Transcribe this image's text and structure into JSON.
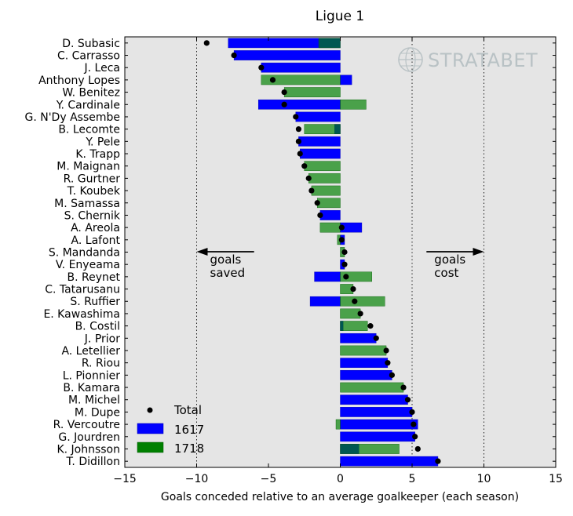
{
  "chart_data": {
    "type": "bar",
    "orientation": "horizontal",
    "title": "Ligue 1",
    "xlabel": "Goals conceded relative to an average goalkeeper (each season)",
    "ylabel": "",
    "xlim": [
      -15,
      15
    ],
    "xticks": [
      -15,
      -10,
      -5,
      0,
      5,
      10,
      15
    ],
    "xtick_labels": [
      "−15",
      "−10",
      "−5",
      "0",
      "5",
      "10",
      "15"
    ],
    "gridlines_x": [
      -10,
      5,
      10
    ],
    "background": "#e5e5e5",
    "legend": {
      "placement": "lower-left",
      "entries": [
        {
          "name": "Total",
          "kind": "marker",
          "color": "#000000"
        },
        {
          "name": "1617",
          "kind": "bar",
          "color": "#0000ff"
        },
        {
          "name": "1718",
          "kind": "bar",
          "color": "#008000"
        }
      ]
    },
    "annotations": {
      "left": {
        "line1": "goals",
        "line2": "saved",
        "arrow_from": -6,
        "arrow_to": -10
      },
      "right": {
        "line1": "goals",
        "line2": "cost",
        "arrow_from": 6,
        "arrow_to": 10
      }
    },
    "watermark": "STRATABET",
    "colors": {
      "s1617": "#0000ff",
      "s1718": "#008000",
      "total": "#000000"
    },
    "players": [
      {
        "name": "D. Subasic",
        "v1617": -7.8,
        "v1718": -1.5,
        "total": -9.3
      },
      {
        "name": "C. Carrasso",
        "v1617": -7.4,
        "v1718": null,
        "total": -7.4
      },
      {
        "name": "J. Leca",
        "v1617": -5.5,
        "v1718": null,
        "total": -5.5
      },
      {
        "name": "Anthony Lopes",
        "v1617": 0.8,
        "v1718": -5.5,
        "total": -4.7
      },
      {
        "name": "W. Benitez",
        "v1617": null,
        "v1718": -3.9,
        "total": -3.9
      },
      {
        "name": "Y. Cardinale",
        "v1617": -5.7,
        "v1718": 1.8,
        "total": -3.9
      },
      {
        "name": "G. N'Dy Assembe",
        "v1617": -3.1,
        "v1718": null,
        "total": -3.1
      },
      {
        "name": "B. Lecomte",
        "v1617": -0.4,
        "v1718": -2.5,
        "total": -2.9
      },
      {
        "name": "Y. Pele",
        "v1617": -2.9,
        "v1718": null,
        "total": -2.9
      },
      {
        "name": "K. Trapp",
        "v1617": -2.8,
        "v1718": null,
        "total": -2.8
      },
      {
        "name": "M. Maignan",
        "v1617": null,
        "v1718": -2.5,
        "total": -2.5
      },
      {
        "name": "R. Gurtner",
        "v1617": null,
        "v1718": -2.2,
        "total": -2.2
      },
      {
        "name": "T. Koubek",
        "v1617": null,
        "v1718": -2.0,
        "total": -2.0
      },
      {
        "name": "M. Samassa",
        "v1617": null,
        "v1718": -1.6,
        "total": -1.6
      },
      {
        "name": "S. Chernik",
        "v1617": -1.4,
        "v1718": null,
        "total": -1.4
      },
      {
        "name": "A. Areola",
        "v1617": 1.5,
        "v1718": -1.4,
        "total": 0.1
      },
      {
        "name": "A. Lafont",
        "v1617": 0.3,
        "v1718": -0.2,
        "total": 0.1
      },
      {
        "name": "S. Mandanda",
        "v1617": null,
        "v1718": 0.3,
        "total": 0.3
      },
      {
        "name": "V. Enyeama",
        "v1617": 0.3,
        "v1718": null,
        "total": 0.3
      },
      {
        "name": "B. Reynet",
        "v1617": -1.8,
        "v1718": 2.2,
        "total": 0.4
      },
      {
        "name": "C. Tatarusanu",
        "v1617": null,
        "v1718": 0.9,
        "total": 0.9
      },
      {
        "name": "S. Ruffier",
        "v1617": -2.1,
        "v1718": 3.1,
        "total": 1.0
      },
      {
        "name": "E. Kawashima",
        "v1617": null,
        "v1718": 1.4,
        "total": 1.4
      },
      {
        "name": "B. Costil",
        "v1617": 0.2,
        "v1718": 1.9,
        "total": 2.1
      },
      {
        "name": "J. Prior",
        "v1617": 2.5,
        "v1718": null,
        "total": 2.5
      },
      {
        "name": "A. Letellier",
        "v1617": null,
        "v1718": 3.2,
        "total": 3.2
      },
      {
        "name": "R. Riou",
        "v1617": 3.3,
        "v1718": null,
        "total": 3.3
      },
      {
        "name": "L. Pionnier",
        "v1617": 3.6,
        "v1718": null,
        "total": 3.6
      },
      {
        "name": "B. Kamara",
        "v1617": null,
        "v1718": 4.4,
        "total": 4.4
      },
      {
        "name": "M. Michel",
        "v1617": 4.7,
        "v1718": null,
        "total": 4.7
      },
      {
        "name": "M. Dupe",
        "v1617": 5.0,
        "v1718": null,
        "total": 5.0
      },
      {
        "name": "R. Vercoutre",
        "v1617": 5.4,
        "v1718": -0.3,
        "total": 5.1
      },
      {
        "name": "G. Jourdren",
        "v1617": 5.2,
        "v1718": null,
        "total": 5.2
      },
      {
        "name": "K. Johnsson",
        "v1617": 1.3,
        "v1718": 4.1,
        "total": 5.4
      },
      {
        "name": "T. Didillon",
        "v1617": 6.8,
        "v1718": null,
        "total": 6.8
      }
    ]
  }
}
